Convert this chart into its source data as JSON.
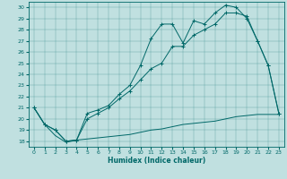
{
  "xlabel": "Humidex (Indice chaleur)",
  "background_color": "#c0e0e0",
  "line_color": "#006868",
  "xlim": [
    -0.5,
    23.5
  ],
  "ylim": [
    17.5,
    30.5
  ],
  "yticks": [
    18,
    19,
    20,
    21,
    22,
    23,
    24,
    25,
    26,
    27,
    28,
    29,
    30
  ],
  "xticks": [
    0,
    1,
    2,
    3,
    4,
    5,
    6,
    7,
    8,
    9,
    10,
    11,
    12,
    13,
    14,
    15,
    16,
    17,
    18,
    19,
    20,
    21,
    22,
    23
  ],
  "line1_x": [
    0,
    1,
    2,
    3,
    4,
    5,
    6,
    7,
    8,
    9,
    10,
    11,
    12,
    13,
    14,
    15,
    16,
    17,
    18,
    19,
    20,
    21,
    22,
    23
  ],
  "line1_y": [
    21,
    19.5,
    19,
    18,
    18.1,
    20.5,
    20.8,
    21.2,
    22.2,
    23.0,
    24.8,
    27.2,
    28.5,
    28.5,
    26.8,
    28.8,
    28.5,
    29.5,
    30.2,
    30.0,
    29.0,
    27.0,
    24.8,
    20.5
  ],
  "line2_x": [
    0,
    1,
    2,
    3,
    4,
    5,
    6,
    7,
    8,
    9,
    10,
    11,
    12,
    13,
    14,
    15,
    16,
    17,
    18,
    19,
    20,
    21,
    22,
    23
  ],
  "line2_y": [
    21,
    19.5,
    19,
    18,
    18.1,
    20.0,
    20.5,
    21.0,
    21.8,
    22.5,
    23.5,
    24.5,
    25.0,
    26.5,
    26.5,
    27.5,
    28.0,
    28.5,
    29.5,
    29.5,
    29.2,
    27.0,
    24.8,
    20.5
  ],
  "line3_x": [
    0,
    1,
    2,
    3,
    4,
    5,
    6,
    7,
    8,
    9,
    10,
    11,
    12,
    13,
    14,
    15,
    16,
    17,
    18,
    19,
    20,
    21,
    22,
    23
  ],
  "line3_y": [
    21,
    19.5,
    18.5,
    17.9,
    18.1,
    18.2,
    18.3,
    18.4,
    18.5,
    18.6,
    18.8,
    19.0,
    19.1,
    19.3,
    19.5,
    19.6,
    19.7,
    19.8,
    20.0,
    20.2,
    20.3,
    20.4,
    20.4,
    20.4
  ]
}
